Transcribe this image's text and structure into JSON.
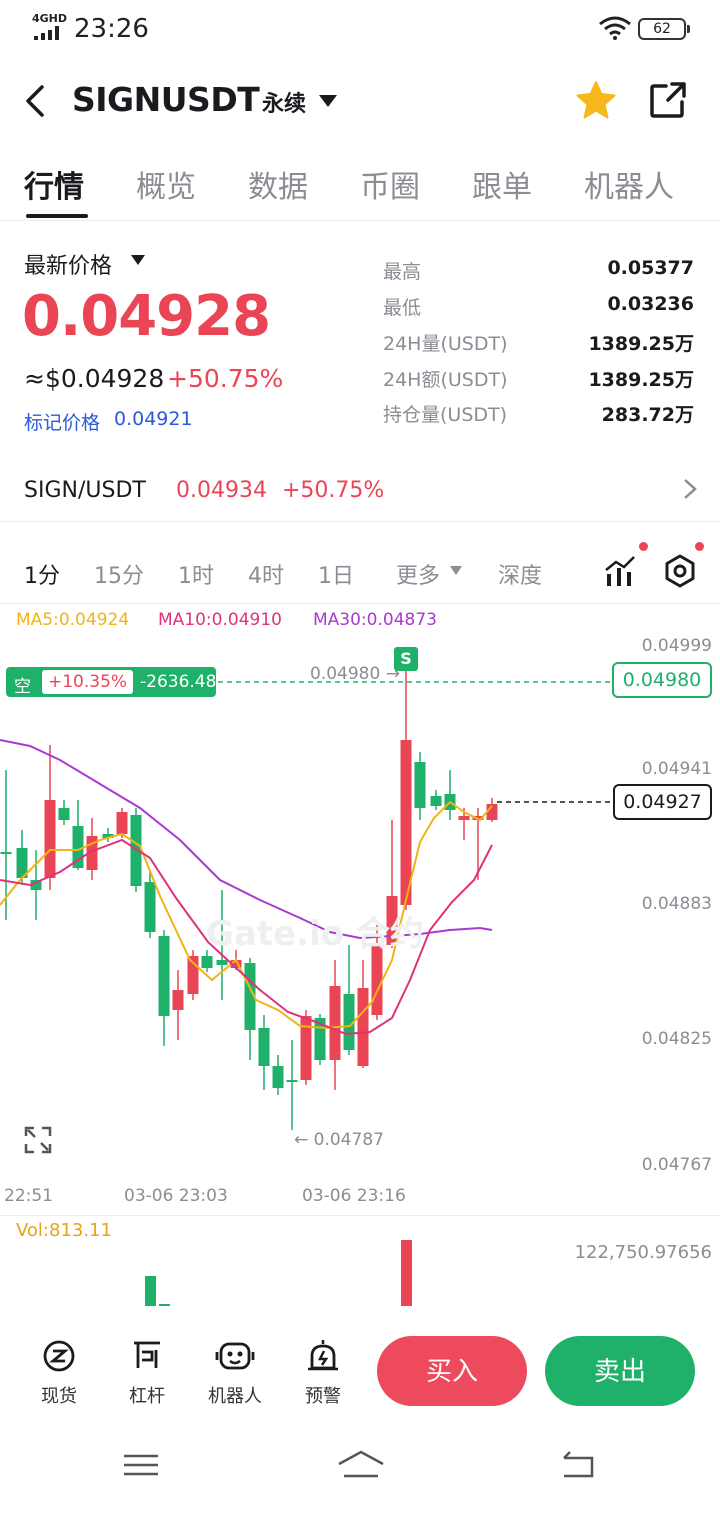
{
  "status_bar": {
    "network": "4GHD",
    "time": "23:26",
    "battery": "62"
  },
  "header": {
    "symbol": "SIGNUSDT",
    "contract_type": "永续"
  },
  "tabs": [
    "行情",
    "概览",
    "数据",
    "币圈",
    "跟单",
    "机器人"
  ],
  "price": {
    "label": "最新价格",
    "last": "0.04928",
    "usd": "≈$0.04928",
    "change": "+50.75%",
    "mark_label": "标记价格",
    "mark_value": "0.04921"
  },
  "stats": [
    {
      "label": "最高",
      "value": "0.05377"
    },
    {
      "label": "最低",
      "value": "0.03236"
    },
    {
      "label": "24H量(USDT)",
      "value": "1389.25万"
    },
    {
      "label": "24H额(USDT)",
      "value": "1389.25万"
    },
    {
      "label": "持仓量(USDT)",
      "value": "283.72万"
    }
  ],
  "spot": {
    "pair": "SIGN/USDT",
    "price": "0.04934",
    "change": "+50.75%"
  },
  "intervals": [
    "1分",
    "15分",
    "1时",
    "4时",
    "1日",
    "更多",
    "深度"
  ],
  "ma": {
    "ma5": "MA5:0.04924",
    "ma10": "MA10:0.04910",
    "ma30": "MA30:0.04873"
  },
  "colors": {
    "up": "#1fb16a",
    "down": "#ea4555",
    "ma5": "#f0b416",
    "ma10": "#e2307a",
    "ma30": "#a93ad0"
  },
  "chart": {
    "y_axis": [
      "0.04999",
      "0.04941",
      "0.04883",
      "0.04825",
      "0.04767"
    ],
    "x_axis": [
      "22:51",
      "03-06 23:03",
      "03-06 23:16"
    ],
    "position": {
      "side": "空",
      "pnl_pct": "+10.35%",
      "pnl": "-2636.48"
    },
    "signal": "S",
    "entry_label": "0.04980 →",
    "entry_box": "0.04980",
    "last_box": "0.04927",
    "min_label": "← 0.04787",
    "volume_label": "Vol:813.11",
    "volume_axis": "122,750.97656",
    "watermark": "Gate.io 合约"
  },
  "bottom_nav": [
    {
      "label": "现货",
      "icon": "spot-icon"
    },
    {
      "label": "杠杆",
      "icon": "leverage-icon"
    },
    {
      "label": "机器人",
      "icon": "robot-icon"
    },
    {
      "label": "预警",
      "icon": "alert-icon"
    }
  ],
  "actions": {
    "buy": "买入",
    "sell": "卖出"
  }
}
